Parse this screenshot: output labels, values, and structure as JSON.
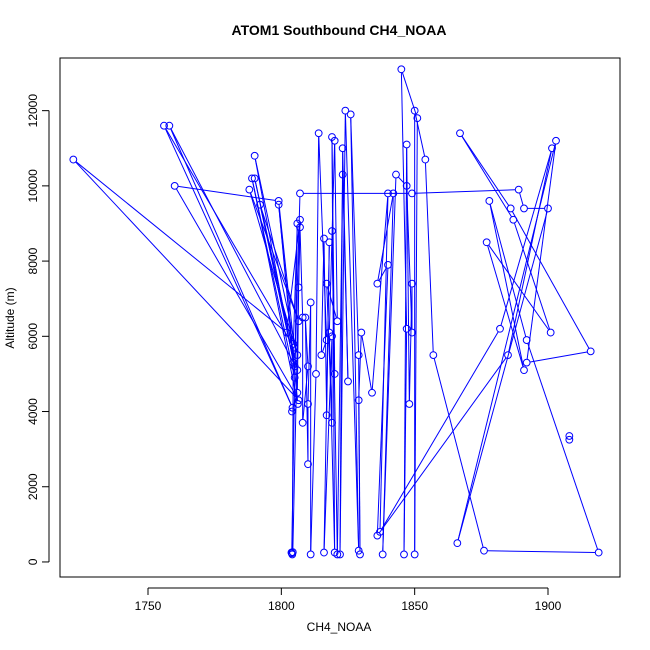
{
  "chart_data": {
    "type": "line",
    "title": "ATOM1 Southbound CH4_NOAA",
    "xlabel": "CH4_NOAA",
    "ylabel": "Altitude (m)",
    "xlim": [
      1717,
      1927
    ],
    "ylim": [
      -400,
      13400
    ],
    "x_ticks": [
      1750,
      1800,
      1850,
      1900
    ],
    "y_ticks": [
      0,
      2000,
      4000,
      6000,
      8000,
      10000,
      12000
    ],
    "marker": "open-circle",
    "colors": {
      "series": "#0000ff",
      "axis": "#000000"
    },
    "series": [
      {
        "points": [
          [
            1803.8,
            250
          ],
          [
            1804.1,
            200
          ],
          [
            1804.5,
            5800
          ],
          [
            1806.0,
            9000
          ],
          [
            1803.9,
            230
          ],
          [
            1804.3,
            260
          ],
          [
            1807.0,
            9100
          ],
          [
            1802.0,
            6100
          ],
          [
            1722.0,
            10700
          ],
          [
            1806.5,
            4300
          ],
          [
            1760.0,
            10000
          ],
          [
            1799.0,
            9600
          ],
          [
            1804.8,
            5700
          ],
          [
            1756.0,
            11600
          ],
          [
            1804.2,
            4100
          ],
          [
            1758.0,
            11600
          ],
          [
            1806.0,
            5100
          ],
          [
            1790.0,
            10200
          ],
          [
            1805.0,
            5200
          ],
          [
            1792.0,
            9500
          ],
          [
            1806.5,
            6400
          ],
          [
            1788.0,
            9900
          ],
          [
            1806.0,
            5500
          ],
          [
            1790.0,
            10800
          ],
          [
            1804.5,
            5300
          ],
          [
            1799.0,
            9500
          ],
          [
            1806.2,
            4200
          ],
          [
            1789.0,
            10200
          ],
          [
            1805.0,
            4900
          ],
          [
            1807.0,
            9800
          ],
          [
            1849.0,
            9800
          ],
          [
            1889.0,
            9900
          ],
          [
            1891.0,
            9400
          ],
          [
            1900.0,
            9400
          ],
          [
            1866.0,
            500
          ],
          [
            1903.0,
            11200
          ],
          [
            1892.0,
            5300
          ],
          [
            1916.0,
            5600
          ],
          [
            1886.0,
            9400
          ],
          [
            1867.0,
            11400
          ],
          [
            1887.0,
            9100
          ],
          [
            1901.0,
            6100
          ],
          [
            1877.0,
            8500
          ],
          [
            1891.0,
            5100
          ],
          [
            1878.0,
            9600
          ],
          [
            1892.0,
            5900
          ],
          [
            1919.0,
            250
          ],
          [
            1876.0,
            300
          ],
          [
            1857.0,
            5500
          ],
          [
            1854.0,
            10700
          ],
          [
            1850.0,
            12000
          ],
          [
            1850.0,
            200
          ],
          [
            1851.0,
            11800
          ],
          [
            1845.0,
            13100
          ],
          [
            1847.0,
            6200
          ],
          [
            1846.0,
            200
          ],
          [
            1847.0,
            11100
          ],
          [
            1848.0,
            4200
          ],
          [
            1849.0,
            7400
          ],
          [
            1849.0,
            6100
          ],
          [
            1847.0,
            10000
          ],
          [
            1843.0,
            10300
          ],
          [
            1838.0,
            200
          ],
          [
            1842.0,
            9800
          ],
          [
            1836.0,
            7400
          ],
          [
            1840.0,
            7900
          ],
          [
            1836.0,
            700
          ],
          [
            1885.0,
            5500
          ],
          [
            1901.5,
            11000
          ],
          [
            1882.0,
            6200
          ],
          [
            1837.0,
            800
          ],
          [
            1840.0,
            9800
          ],
          [
            1834.0,
            4500
          ],
          [
            1830.0,
            6100
          ],
          [
            1829.0,
            4300
          ],
          [
            1829.5,
            200
          ],
          [
            1829.0,
            5500
          ],
          [
            1826.0,
            11900
          ],
          [
            1829.0,
            300
          ],
          [
            1824.0,
            12000
          ],
          [
            1822.0,
            200
          ],
          [
            1823.0,
            11000
          ],
          [
            1825.0,
            4800
          ],
          [
            1823.0,
            10300
          ],
          [
            1821.0,
            200
          ],
          [
            1819.0,
            8800
          ],
          [
            1820.0,
            5000
          ],
          [
            1819.0,
            11300
          ],
          [
            1820.0,
            250
          ],
          [
            1818.0,
            6100
          ],
          [
            1820.0,
            11200
          ],
          [
            1821.0,
            6400
          ],
          [
            1817.0,
            7400
          ],
          [
            1819.0,
            3700
          ],
          [
            1819.0,
            6000
          ],
          [
            1816.0,
            250
          ],
          [
            1818.0,
            8500
          ],
          [
            1817.0,
            3900
          ],
          [
            1816.0,
            8600
          ],
          [
            1815.0,
            5500
          ],
          [
            1817.0,
            5900
          ],
          [
            1814.0,
            11400
          ],
          [
            1813.0,
            5000
          ],
          [
            1811.0,
            200
          ],
          [
            1811.0,
            6900
          ],
          [
            1810.0,
            4200
          ],
          [
            1810.0,
            2600
          ],
          [
            1809.0,
            6500
          ],
          [
            1810.0,
            5200
          ],
          [
            1808.0,
            3700
          ],
          [
            1808.0,
            6500
          ],
          [
            1807.0,
            8900
          ],
          [
            1806.5,
            7300
          ],
          [
            1806.0,
            4500
          ],
          [
            1804.0,
            4000
          ]
        ]
      },
      {
        "points": [
          [
            1908,
            3350
          ],
          [
            1908,
            3250
          ]
        ]
      }
    ]
  }
}
